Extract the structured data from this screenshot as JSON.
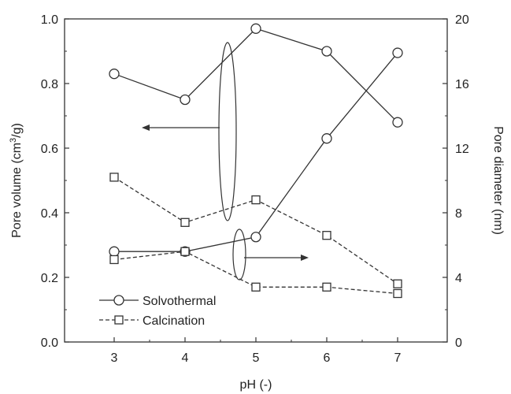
{
  "chart_data": {
    "type": "line",
    "xlabel": "pH (-)",
    "ylabel_left": "Pore volume (cm",
    "ylabel_left_sup": "3",
    "ylabel_left_end": "/g)",
    "ylabel_right": "Pore diameter (nm)",
    "x": [
      3,
      4,
      5,
      6,
      7
    ],
    "xlim": [
      2.3,
      7.7
    ],
    "xticks": [
      "3",
      "4",
      "5",
      "6",
      "7"
    ],
    "ylim_left": [
      0.0,
      1.0
    ],
    "yticks_left": [
      "0.0",
      "0.2",
      "0.4",
      "0.6",
      "0.8",
      "1.0"
    ],
    "ylim_right": [
      0,
      20
    ],
    "yticks_right": [
      "0",
      "4",
      "8",
      "12",
      "16",
      "20"
    ],
    "series": [
      {
        "name": "Solvothermal",
        "axis": "left",
        "marker": "circle",
        "line": "solid",
        "values": [
          0.83,
          0.75,
          0.97,
          0.9,
          0.68
        ]
      },
      {
        "name": "Solvothermal",
        "axis": "right",
        "marker": "circle",
        "line": "solid",
        "values": [
          5.6,
          5.6,
          6.5,
          12.6,
          17.9
        ]
      },
      {
        "name": "Calcination",
        "axis": "left",
        "marker": "square",
        "line": "dashed",
        "values": [
          0.51,
          0.37,
          0.44,
          0.33,
          0.18
        ]
      },
      {
        "name": "Calcination",
        "axis": "right",
        "marker": "square",
        "line": "dashed",
        "values": [
          5.1,
          5.6,
          3.4,
          3.4,
          3.0
        ]
      }
    ],
    "legend": {
      "placement": "bottom-left",
      "entries": [
        {
          "label": "Solvothermal",
          "marker": "circle",
          "line": "solid"
        },
        {
          "label": "Calcination",
          "marker": "square",
          "line": "dashed"
        }
      ]
    },
    "annotations": [
      {
        "type": "ellipse-arrow",
        "target_axis": "left",
        "direction": "left"
      },
      {
        "type": "ellipse-arrow",
        "target_axis": "right",
        "direction": "right"
      }
    ],
    "grid": false
  }
}
